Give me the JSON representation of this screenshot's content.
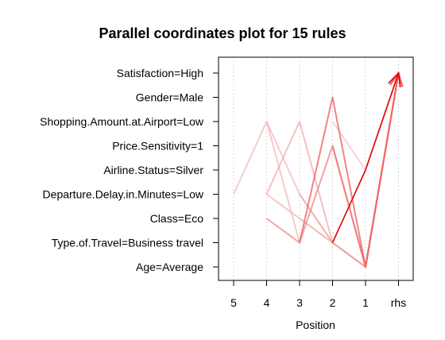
{
  "chart_data": {
    "type": "parallel-coordinates",
    "title": "Parallel coordinates plot for 15 rules",
    "xlabel": "Position",
    "positions": [
      "5",
      "4",
      "3",
      "2",
      "1",
      "rhs"
    ],
    "items": [
      "Age=Average",
      "Type.of.Travel=Business travel",
      "Class=Eco",
      "Departure.Delay.in.Minutes=Low",
      "Airline.Status=Silver",
      "Price.Sensitivity=1",
      "Shopping.Amount.at.Airport=Low",
      "Gender=Male",
      "Satisfaction=High"
    ],
    "grid": "vertical dotted",
    "rules": [
      {
        "path": [
          null,
          null,
          null,
          "Type.of.Travel=Business travel",
          "Airline.Status=Silver",
          "Satisfaction=High"
        ],
        "shade": 1.0
      },
      {
        "path": [
          null,
          null,
          "Type.of.Travel=Business travel",
          "Gender=Male",
          "Age=Average",
          "Satisfaction=High"
        ],
        "shade": 0.55
      },
      {
        "path": [
          null,
          "Class=Eco",
          "Type.of.Travel=Business travel",
          "Price.Sensitivity=1",
          "Age=Average",
          "Satisfaction=High"
        ],
        "shade": 0.4
      },
      {
        "path": [
          null,
          null,
          null,
          "Price.Sensitivity=1",
          "Age=Average",
          "Satisfaction=High"
        ],
        "shade": 0.35
      },
      {
        "path": [
          null,
          null,
          null,
          "Price.Sensitivity=1",
          "Age=Average",
          "Satisfaction=High"
        ],
        "shade": 0.32
      },
      {
        "path": [
          null,
          null,
          null,
          "Price.Sensitivity=1",
          "Age=Average",
          "Satisfaction=High"
        ],
        "shade": 0.3
      },
      {
        "path": [
          null,
          "Departure.Delay.in.Minutes=Low",
          "Shopping.Amount.at.Airport=Low",
          "Type.of.Travel=Business travel",
          "Age=Average",
          "Satisfaction=High"
        ],
        "shade": 0.25
      },
      {
        "path": [
          null,
          null,
          "Departure.Delay.in.Minutes=Low",
          "Type.of.Travel=Business travel",
          "Age=Average",
          "Satisfaction=High"
        ],
        "shade": 0.22
      },
      {
        "path": [
          null,
          "Departure.Delay.in.Minutes=Low",
          "Class=Eco",
          "Type.of.Travel=Business travel",
          "Age=Average",
          "Satisfaction=High"
        ],
        "shade": 0.2
      },
      {
        "path": [
          "Departure.Delay.in.Minutes=Low",
          "Shopping.Amount.at.Airport=Low",
          "Type.of.Travel=Business travel",
          null,
          null,
          null
        ],
        "shade": 0.18
      },
      {
        "path": [
          null,
          "Shopping.Amount.at.Airport=Low",
          "Departure.Delay.in.Minutes=Low",
          "Type.of.Travel=Business travel",
          "Age=Average",
          "Satisfaction=High"
        ],
        "shade": 0.18
      },
      {
        "path": [
          null,
          null,
          "Class=Eco",
          "Type.of.Travel=Business travel",
          "Age=Average",
          "Satisfaction=High"
        ],
        "shade": 0.15
      },
      {
        "path": [
          null,
          null,
          null,
          "Type.of.Travel=Business travel",
          "Age=Average",
          "Satisfaction=High"
        ],
        "shade": 0.13
      },
      {
        "path": [
          null,
          null,
          null,
          "Shopping.Amount.at.Airport=Low",
          "Airline.Status=Silver",
          "Satisfaction=High"
        ],
        "shade": 0.12
      },
      {
        "path": [
          null,
          null,
          null,
          "Price.Sensitivity=1",
          "Age=Average",
          "Satisfaction=High"
        ],
        "shade": 0.1
      }
    ]
  }
}
